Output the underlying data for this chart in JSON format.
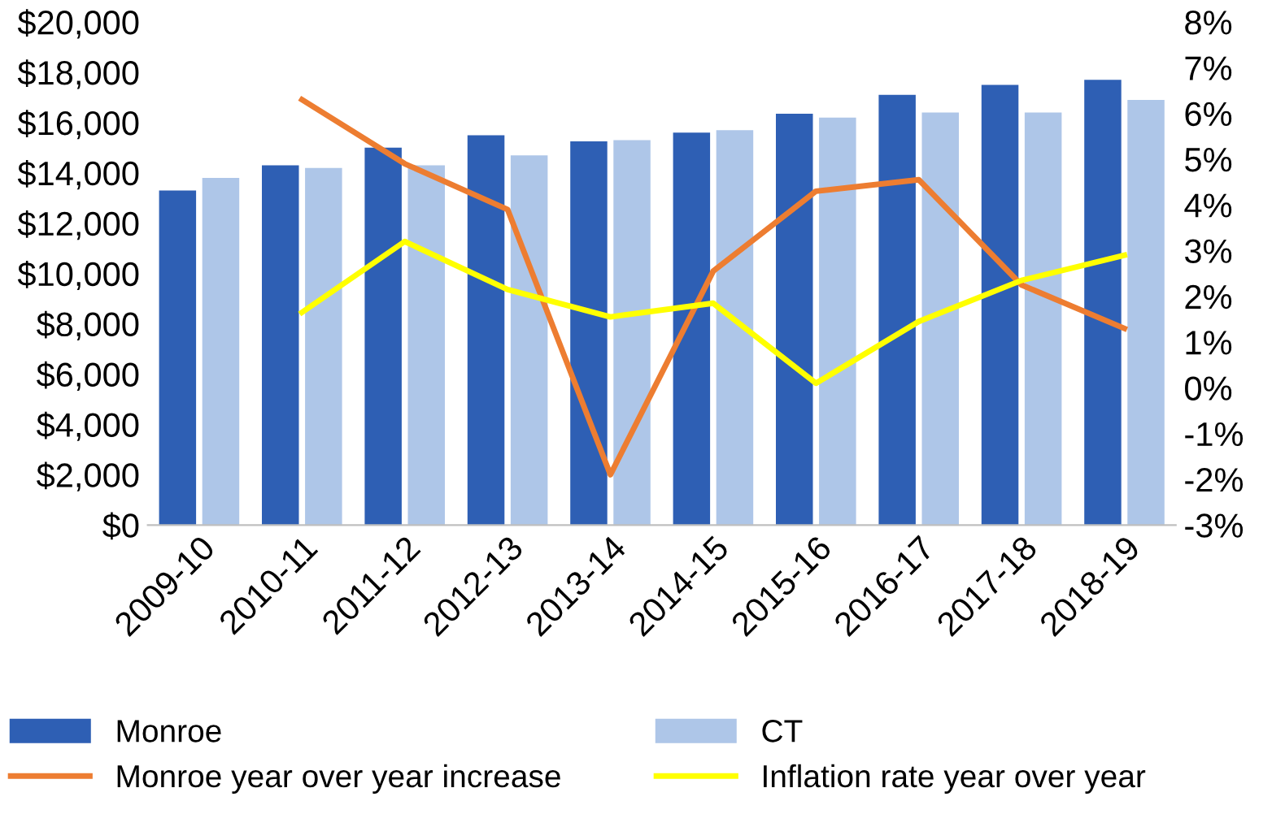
{
  "chart_data": {
    "type": "bar",
    "categories": [
      "2009-10",
      "2010-11",
      "2011-12",
      "2012-13",
      "2013-14",
      "2014-15",
      "2015-16",
      "2016-17",
      "2017-18",
      "2018-19"
    ],
    "series": [
      {
        "name": "Monroe",
        "color": "#2e5fb4",
        "values": [
          13300,
          14300,
          15000,
          15500,
          15250,
          15600,
          16350,
          17100,
          17500,
          17700
        ]
      },
      {
        "name": "CT",
        "color": "#aec6e8",
        "values": [
          13800,
          14200,
          14300,
          14700,
          15300,
          15700,
          16200,
          16400,
          16400,
          16900
        ]
      },
      {
        "name": "Monroe year over year increase",
        "type": "line",
        "axis": "y2",
        "color": "#ed7d31",
        "values": [
          null,
          6.3,
          4.9,
          3.9,
          -1.9,
          2.55,
          4.3,
          4.55,
          2.25,
          1.3
        ]
      },
      {
        "name": "Inflation rate year over year",
        "type": "line",
        "axis": "y2",
        "color": "#ffff00",
        "values": [
          null,
          1.65,
          3.2,
          2.15,
          1.55,
          1.85,
          0.1,
          1.45,
          2.35,
          2.9
        ]
      }
    ],
    "ylim": [
      0,
      20000
    ],
    "yticks": [
      {
        "value": 0,
        "label": "$0"
      },
      {
        "value": 2000,
        "label": "$2,000"
      },
      {
        "value": 4000,
        "label": "$4,000"
      },
      {
        "value": 6000,
        "label": "$6,000"
      },
      {
        "value": 8000,
        "label": "$8,000"
      },
      {
        "value": 10000,
        "label": "$10,000"
      },
      {
        "value": 12000,
        "label": "$12,000"
      },
      {
        "value": 14000,
        "label": "$14,000"
      },
      {
        "value": 16000,
        "label": "$16,000"
      },
      {
        "value": 18000,
        "label": "$18,000"
      },
      {
        "value": 20000,
        "label": "$20,000"
      }
    ],
    "y2lim": [
      -3,
      8
    ],
    "y2ticks": [
      {
        "value": -3,
        "label": "-3%"
      },
      {
        "value": -2,
        "label": "-2%"
      },
      {
        "value": -1,
        "label": "-1%"
      },
      {
        "value": 0,
        "label": "0%"
      },
      {
        "value": 1,
        "label": "1%"
      },
      {
        "value": 2,
        "label": "2%"
      },
      {
        "value": 3,
        "label": "3%"
      },
      {
        "value": 4,
        "label": "4%"
      },
      {
        "value": 5,
        "label": "5%"
      },
      {
        "value": 6,
        "label": "6%"
      },
      {
        "value": 7,
        "label": "7%"
      },
      {
        "value": 8,
        "label": "8%"
      }
    ],
    "legend": "bottom",
    "grid": false,
    "marker": "none",
    "line_style": "solid"
  }
}
